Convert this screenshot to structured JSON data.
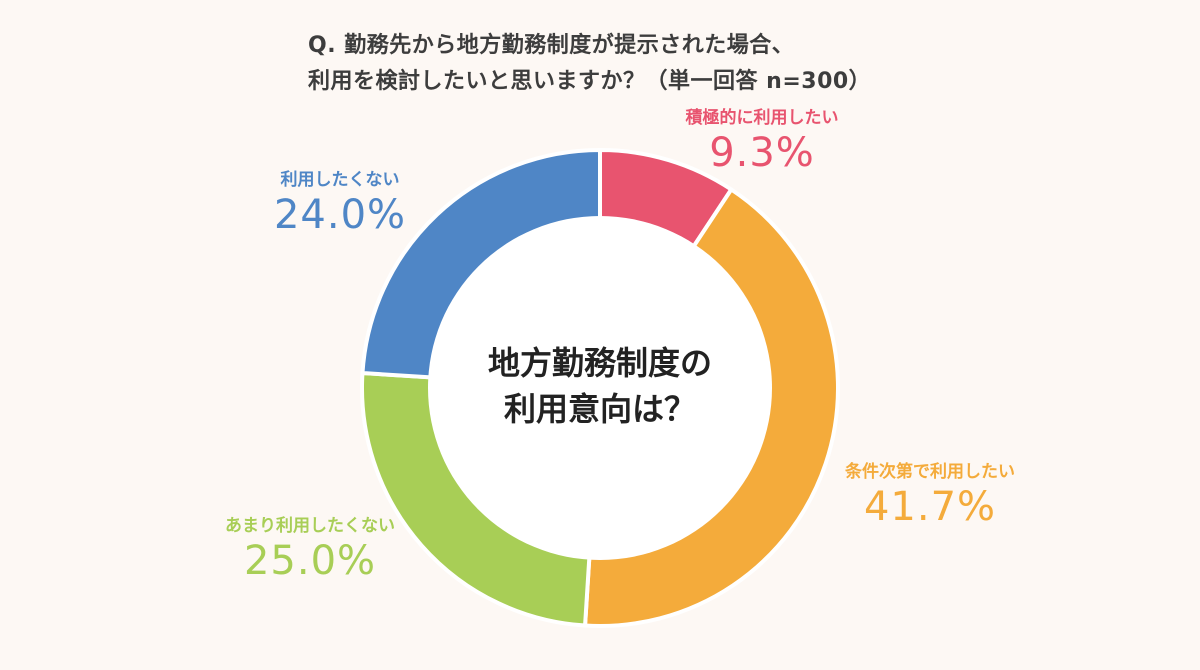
{
  "title": {
    "line1": "Q. 勤務先から地方勤務制度が提示された場合、",
    "line2": "利用を検討したいと思いますか？（単一回答 n=300）"
  },
  "center": {
    "line1": "地方勤務制度の",
    "line2": "利用意向は？"
  },
  "chart_data": {
    "type": "pie",
    "donut": true,
    "title": "Q. 勤務先から地方勤務制度が提示された場合、利用を検討したいと思いますか？（単一回答 n=300）",
    "center_label": "地方勤務制度の利用意向は？",
    "start": "top",
    "direction": "clockwise",
    "unit": "%",
    "slices": [
      {
        "label": "積極的に利用したい",
        "value": 9.3,
        "value_label": "9.3%",
        "color": "#e8546f"
      },
      {
        "label": "条件次第で利用したい",
        "value": 41.7,
        "value_label": "41.7%",
        "color": "#f4ab3b"
      },
      {
        "label": "あまり利用したくない",
        "value": 25.0,
        "value_label": "25.0%",
        "color": "#a8ce56"
      },
      {
        "label": "利用したくない",
        "value": 24.0,
        "value_label": "24.0%",
        "color": "#4f86c6"
      }
    ]
  }
}
